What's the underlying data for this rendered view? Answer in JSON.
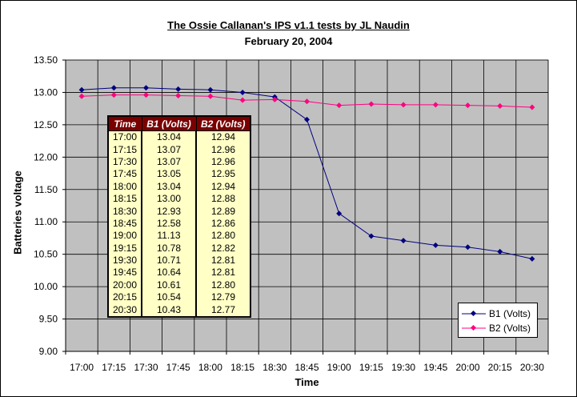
{
  "chart_data": {
    "type": "line",
    "title": "The Ossie Callanan's IPS v1.1 tests by JL Naudin",
    "subtitle": "February 20, 2004",
    "xlabel": "Time",
    "ylabel": "Batteries voltage",
    "ylim": [
      9.0,
      13.5
    ],
    "ystep": 0.5,
    "grid": true,
    "legend_position": "bottom-right",
    "categories": [
      "17:00",
      "17:15",
      "17:30",
      "17:45",
      "18:00",
      "18:15",
      "18:30",
      "18:45",
      "19:00",
      "19:15",
      "19:30",
      "19:45",
      "20:00",
      "20:15",
      "20:30"
    ],
    "series": [
      {
        "name": "B1 (Volts)",
        "color": "#000080",
        "values": [
          13.04,
          13.07,
          13.07,
          13.05,
          13.04,
          13.0,
          12.93,
          12.58,
          11.13,
          10.78,
          10.71,
          10.64,
          10.61,
          10.54,
          10.43
        ]
      },
      {
        "name": "B2 (Volts)",
        "color": "#ff0080",
        "values": [
          12.94,
          12.96,
          12.96,
          12.95,
          12.94,
          12.88,
          12.89,
          12.86,
          12.8,
          12.82,
          12.81,
          12.81,
          12.8,
          12.79,
          12.77
        ]
      }
    ],
    "table": {
      "headers": [
        "Time",
        "B1 (Volts)",
        "B2 (Volts)"
      ],
      "rows": [
        [
          "17:00",
          "13.04",
          "12.94"
        ],
        [
          "17:15",
          "13.07",
          "12.96"
        ],
        [
          "17:30",
          "13.07",
          "12.96"
        ],
        [
          "17:45",
          "13.05",
          "12.95"
        ],
        [
          "18:00",
          "13.04",
          "12.94"
        ],
        [
          "18:15",
          "13.00",
          "12.88"
        ],
        [
          "18:30",
          "12.93",
          "12.89"
        ],
        [
          "18:45",
          "12.58",
          "12.86"
        ],
        [
          "19:00",
          "11.13",
          "12.80"
        ],
        [
          "19:15",
          "10.78",
          "12.82"
        ],
        [
          "19:30",
          "10.71",
          "12.81"
        ],
        [
          "19:45",
          "10.64",
          "12.81"
        ],
        [
          "20:00",
          "10.61",
          "12.80"
        ],
        [
          "20:15",
          "10.54",
          "12.79"
        ],
        [
          "20:30",
          "10.43",
          "12.77"
        ]
      ]
    }
  },
  "colors": {
    "plot_background": "#c0c0c0",
    "table_header": "#7a0000",
    "table_body": "#ffffc6"
  }
}
